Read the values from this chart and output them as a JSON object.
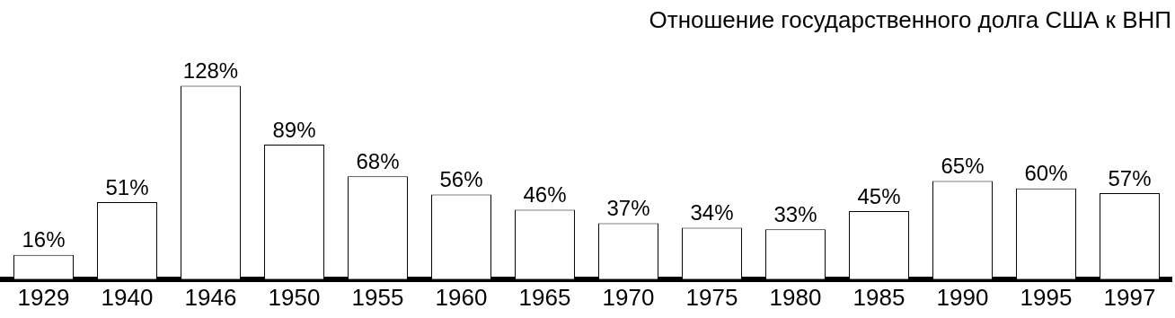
{
  "chart_data": {
    "type": "bar",
    "title": "Отношение государственного долга США к ВНП",
    "categories": [
      "1929",
      "1940",
      "1946",
      "1950",
      "1955",
      "1960",
      "1965",
      "1970",
      "1975",
      "1980",
      "1985",
      "1990",
      "1995",
      "1997"
    ],
    "values": [
      16,
      51,
      128,
      89,
      68,
      56,
      46,
      37,
      34,
      33,
      45,
      65,
      60,
      57
    ],
    "value_labels": [
      "16%",
      "51%",
      "128%",
      "89%",
      "68%",
      "56%",
      "46%",
      "37%",
      "34%",
      "33%",
      "45%",
      "65%",
      "60%",
      "57%"
    ],
    "color": "#ffffff"
  }
}
